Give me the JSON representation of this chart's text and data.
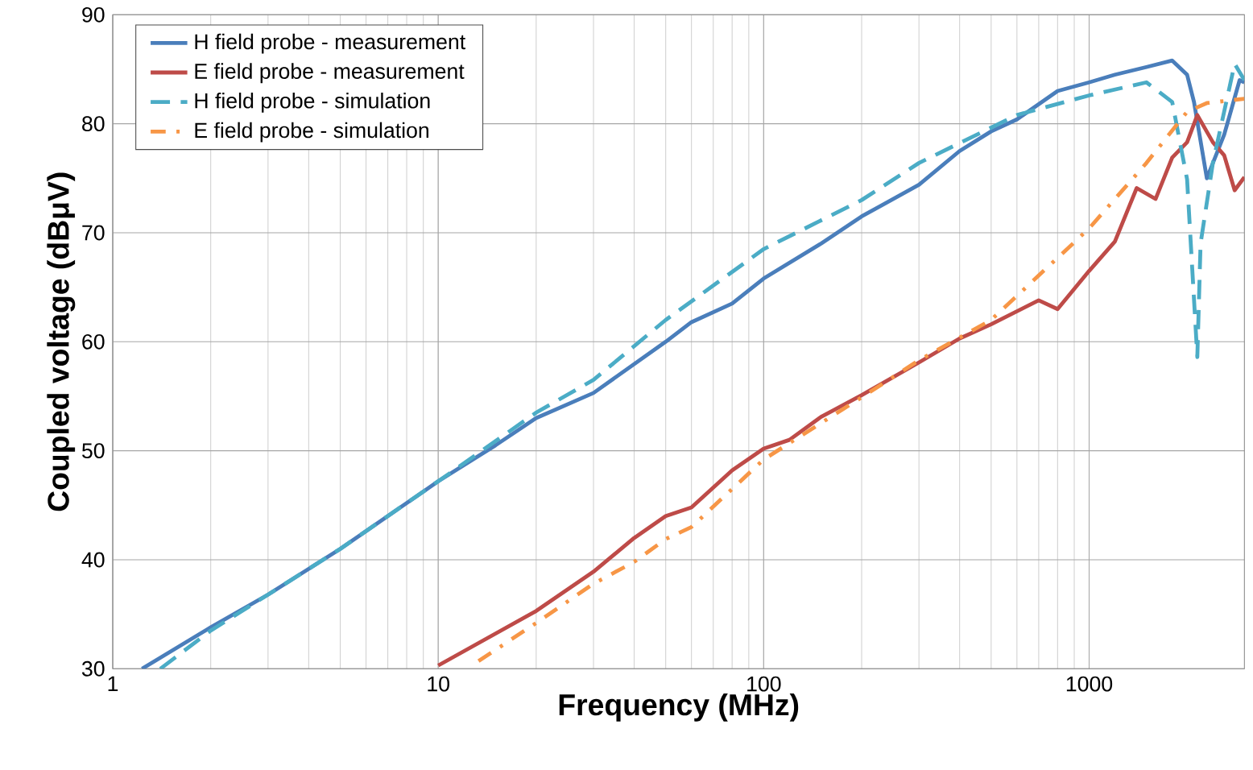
{
  "chart_data": {
    "type": "line",
    "xlabel": "Frequency (MHz)",
    "ylabel": "Coupled voltage (dBμV)",
    "log": "x",
    "xlim": [
      1,
      3000
    ],
    "ylim": [
      30,
      90
    ],
    "xticks": [
      1,
      10,
      100,
      1000
    ],
    "yticks": [
      30,
      40,
      50,
      60,
      70,
      80,
      90
    ],
    "grid": true,
    "legend": "top left",
    "marker": "none",
    "series": [
      {
        "name": "H field probe - measurement",
        "color": "#4a7ebb",
        "line_style": "solid",
        "x": [
          1.23,
          2,
          3,
          5,
          7,
          10,
          15,
          20,
          30,
          50,
          60,
          80,
          100,
          150,
          200,
          300,
          400,
          500,
          600,
          800,
          1000,
          1200,
          1500,
          1800,
          2000,
          2100,
          2300,
          2600,
          2900,
          3000
        ],
        "values": [
          30,
          33.8,
          36.8,
          41,
          44,
          47.2,
          50.5,
          53,
          55.3,
          60,
          61.8,
          63.5,
          65.8,
          69,
          71.5,
          74.4,
          77.5,
          79.3,
          80.4,
          83,
          83.8,
          84.5,
          85.2,
          85.8,
          84.5,
          82,
          75,
          79,
          84,
          83.8
        ]
      },
      {
        "name": "E field probe - measurement",
        "color": "#be4b48",
        "line_style": "solid",
        "x": [
          10,
          20,
          30,
          40,
          50,
          60,
          80,
          100,
          120,
          150,
          200,
          300,
          400,
          500,
          700,
          800,
          1000,
          1200,
          1400,
          1600,
          1800,
          2000,
          2150,
          2400,
          2600,
          2800,
          3000
        ],
        "values": [
          30.3,
          35.3,
          38.9,
          42,
          44,
          44.8,
          48.2,
          50.2,
          51,
          53.1,
          55.1,
          58.1,
          60.3,
          61.6,
          63.8,
          63,
          66.5,
          69.2,
          74.1,
          73.1,
          76.9,
          78.3,
          80.8,
          78.3,
          77.1,
          73.9,
          75.1
        ]
      },
      {
        "name": "H field probe - simulation",
        "color": "#4bacc6",
        "line_style": "dashed",
        "x": [
          1.4,
          2,
          3,
          5,
          10,
          20,
          30,
          50,
          100,
          200,
          300,
          600,
          1000,
          1500,
          1800,
          2000,
          2150,
          2200,
          2400,
          2800,
          3000
        ],
        "values": [
          30,
          33.5,
          36.8,
          41,
          47.2,
          53.5,
          56.5,
          62,
          68.5,
          73,
          76.4,
          80.8,
          82.6,
          83.8,
          82,
          74.9,
          58.6,
          69,
          76.4,
          85.5,
          84
        ]
      },
      {
        "name": "E field probe - simulation",
        "color": "#f79646",
        "line_style": "dashdot",
        "x": [
          13.3,
          20,
          30,
          40,
          50,
          60,
          100,
          200,
          300,
          500,
          1000,
          1500,
          2000,
          2300,
          3000
        ],
        "values": [
          30.7,
          34.2,
          37.8,
          39.8,
          41.9,
          43,
          49.2,
          54.9,
          58.3,
          62,
          70.4,
          76.4,
          81.1,
          81.9,
          82.3
        ]
      }
    ]
  }
}
